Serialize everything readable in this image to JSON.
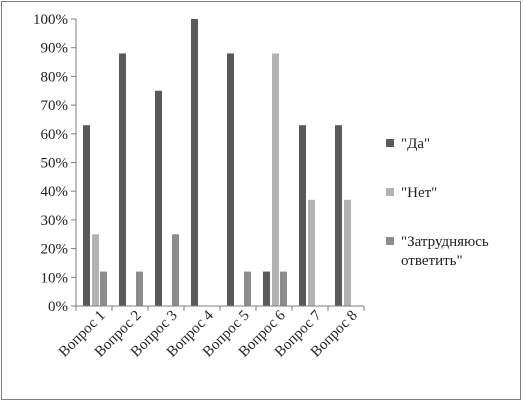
{
  "chart_data": {
    "type": "bar",
    "title": "",
    "xlabel": "",
    "ylabel": "",
    "ylim": [
      0,
      100
    ],
    "ytick_labels": [
      "0%",
      "10%",
      "20%",
      "30%",
      "40%",
      "50%",
      "60%",
      "70%",
      "80%",
      "90%",
      "100%"
    ],
    "grid": false,
    "legend_position": "right",
    "categories": [
      "Вопрос 1",
      "Вопрос 2",
      "Вопрос 3",
      "Вопрос 4",
      "Вопрос 5",
      "Вопрос 6",
      "Вопрос 7",
      "Вопрос 8"
    ],
    "series": [
      {
        "name": "\"Да\"",
        "color": "#595959",
        "values": [
          63,
          88,
          75,
          100,
          88,
          12,
          63,
          63
        ]
      },
      {
        "name": "\"Нет\"",
        "color": "#b3b3b3",
        "values": [
          25,
          0,
          0,
          0,
          0,
          88,
          37,
          37
        ]
      },
      {
        "name": "\"Затрудняюсь ответить\"",
        "legend_lines": [
          "\"Затрудняюсь",
          "ответить\""
        ],
        "color": "#8c8c8c",
        "values": [
          12,
          12,
          25,
          0,
          12,
          12,
          0,
          0
        ]
      }
    ]
  }
}
